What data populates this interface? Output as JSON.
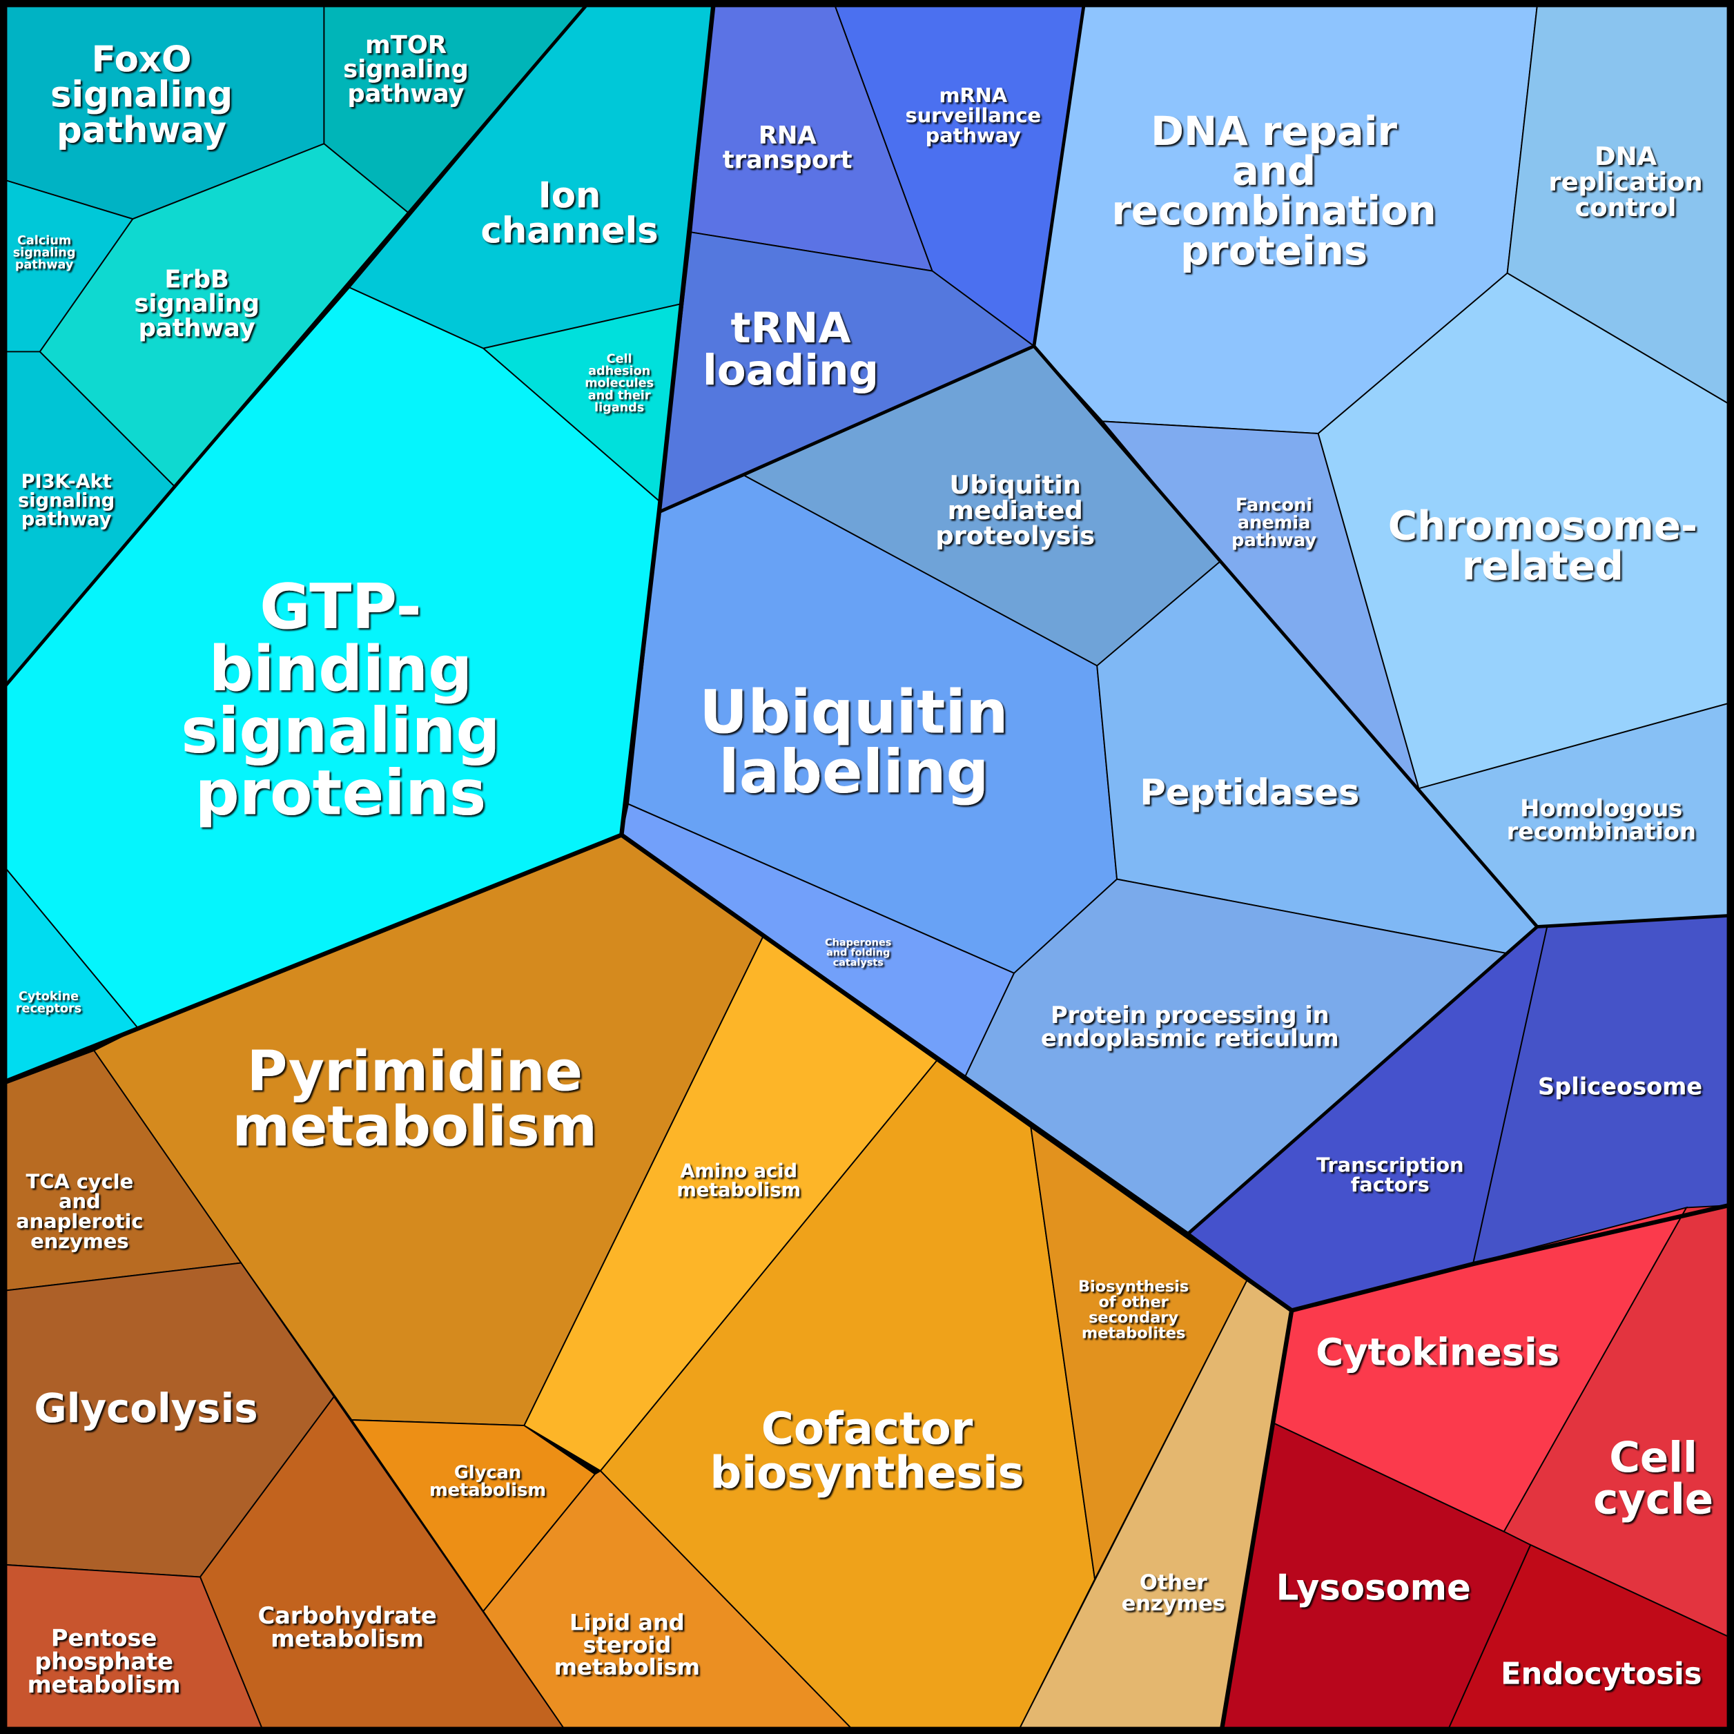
{
  "cells": [
    {
      "id": "foxo",
      "label": "FoxO\nsignaling\npathway",
      "color": "#00b3c4"
    },
    {
      "id": "mtor",
      "label": "mTOR\nsignaling\npathway",
      "color": "#00b5b8"
    },
    {
      "id": "erbb",
      "label": "ErbB\nsignaling\npathway",
      "color": "#0fd9d0"
    },
    {
      "id": "calcium",
      "label": "Calcium\nsignaling\npathway",
      "color": "#00c8d8"
    },
    {
      "id": "pi3k",
      "label": "PI3K-Akt\nsignaling\npathway",
      "color": "#00c5d5"
    },
    {
      "id": "ion",
      "label": "Ion\nchannels",
      "color": "#00c8d8"
    },
    {
      "id": "adhesion",
      "label": "Cell\nadhesion\nmolecules\nand their\nligands",
      "color": "#00e0dc"
    },
    {
      "id": "gtp",
      "label": "GTP-\nbinding\nsignaling\nproteins",
      "color": "#05f5fd"
    },
    {
      "id": "cytokine",
      "label": "Cytokine\nreceptors",
      "color": "#00dcf0"
    },
    {
      "id": "rna",
      "label": "RNA\ntransport",
      "color": "#5b73e5"
    },
    {
      "id": "mrna",
      "label": "mRNA\nsurveillance\npathway",
      "color": "#4b70f0"
    },
    {
      "id": "trna",
      "label": "tRNA\nloading",
      "color": "#5478de"
    },
    {
      "id": "ubmed",
      "label": "Ubiquitin\nmediated\nproteolysis",
      "color": "#6fa3d8"
    },
    {
      "id": "ublab",
      "label": "Ubiquitin\nlabeling",
      "color": "#68a2f5"
    },
    {
      "id": "chap",
      "label": "Chaperones\nand folding\ncatalysts",
      "color": "#72a0fa"
    },
    {
      "id": "pept",
      "label": "Peptidases",
      "color": "#7fb8f5"
    },
    {
      "id": "prot",
      "label": "Protein processing in\nendoplasmic reticulum",
      "color": "#7aaaeb"
    },
    {
      "id": "dnarep",
      "label": "DNA repair\nand\nrecombination\nproteins",
      "color": "#8ec4fe"
    },
    {
      "id": "dnactl",
      "label": "DNA\nreplication\ncontrol",
      "color": "#8ac4ef"
    },
    {
      "id": "fanconi",
      "label": "Fanconi\nanemia\npathway",
      "color": "#7fabf0"
    },
    {
      "id": "chrom",
      "label": "Chromosome-\nrelated",
      "color": "#98d2fd"
    },
    {
      "id": "homol",
      "label": "Homologous\nrecombination",
      "color": "#87c0f5"
    },
    {
      "id": "transc",
      "label": "Transcription\nfactors",
      "color": "#4552cc"
    },
    {
      "id": "splice",
      "label": "Spliceosome",
      "color": "#4553c8"
    },
    {
      "id": "cytok",
      "label": "Cytokinesis",
      "color": "#fb3a4c"
    },
    {
      "id": "cellcycle",
      "label": "Cell\ncycle",
      "color": "#e3343f"
    },
    {
      "id": "lyso",
      "label": "Lysosome",
      "color": "#b8061c"
    },
    {
      "id": "endo",
      "label": "Endocytosis",
      "color": "#c00a18"
    },
    {
      "id": "pyr",
      "label": "Pyrimidine\nmetabolism",
      "color": "#d58a1e"
    },
    {
      "id": "tca",
      "label": "TCA cycle\nand\nanaplerotic\nenzymes",
      "color": "#b86b22"
    },
    {
      "id": "glyco",
      "label": "Glycolysis",
      "color": "#ad6028"
    },
    {
      "id": "carb",
      "label": "Carbohydrate\nmetabolism",
      "color": "#c2631e"
    },
    {
      "id": "pent",
      "label": "Pentose\nphosphate\nmetabolism",
      "color": "#c8552e"
    },
    {
      "id": "glycan",
      "label": "Glycan\nmetabolism",
      "color": "#ed8f15"
    },
    {
      "id": "amino",
      "label": "Amino acid\nmetabolism",
      "color": "#fdb528"
    },
    {
      "id": "lipid",
      "label": "Lipid and\nsteroid\nmetabolism",
      "color": "#eb8f22"
    },
    {
      "id": "cofac",
      "label": "Cofactor\nbiosynthesis",
      "color": "#efa21a"
    },
    {
      "id": "biosyn",
      "label": "Biosynthesis\nof other\nsecondary\nmetabolites",
      "color": "#e2921e"
    },
    {
      "id": "other",
      "label": "Other\nenzymes",
      "color": "#e4b76f"
    }
  ]
}
